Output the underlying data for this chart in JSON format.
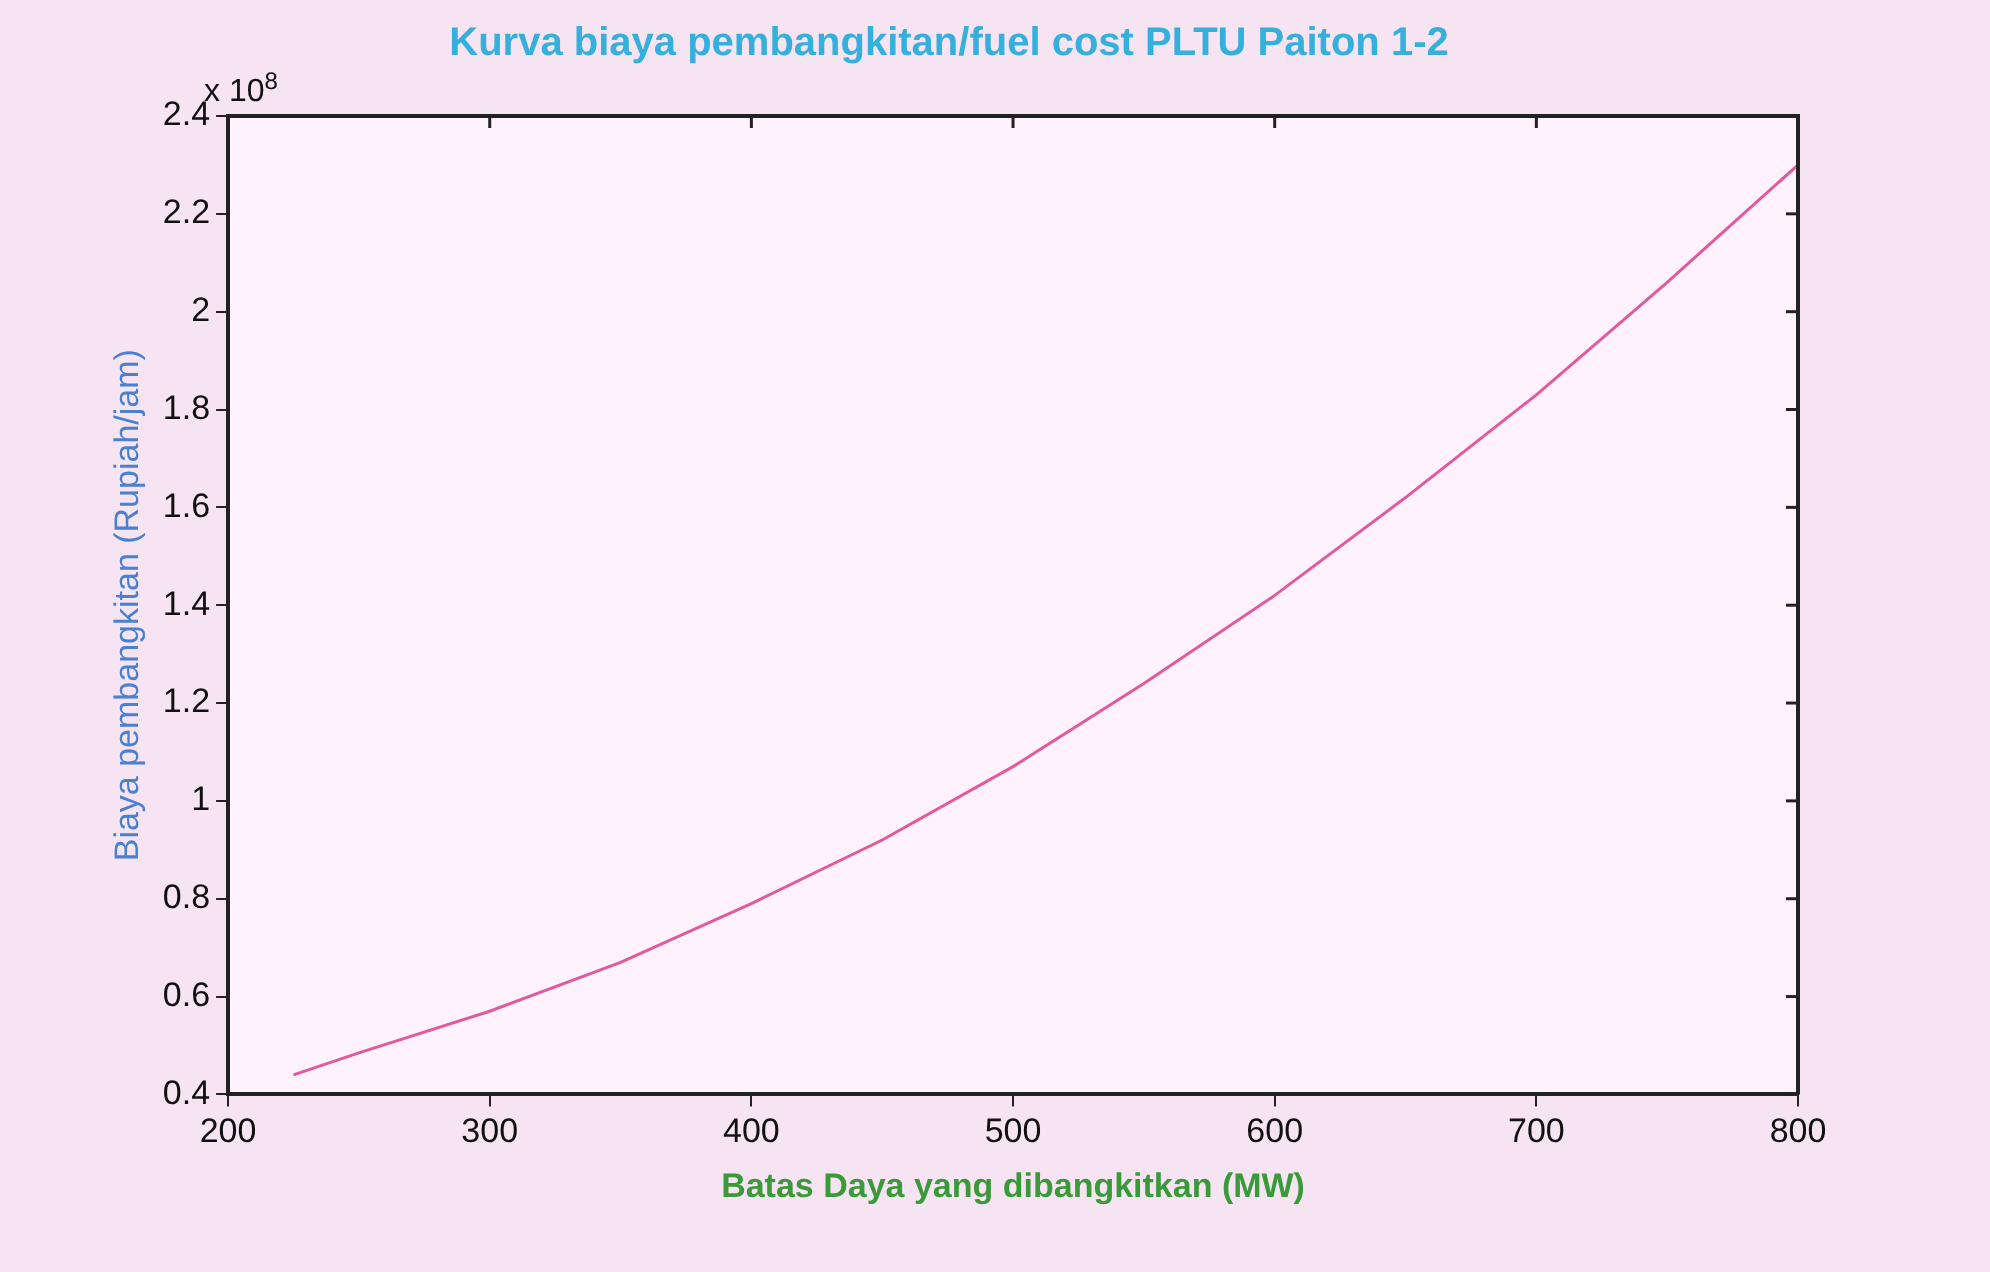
{
  "chart_data": {
    "type": "line",
    "title": "Kurva biaya pembangkitan/fuel cost PLTU Paiton 1-2",
    "xlabel": "Batas Daya yang dibangkitkan (MW)",
    "ylabel": "Biaya pembangkitan (Rupiah/jam)",
    "annotations": [
      "x 10$^{8}$"
    ],
    "x": [
      225,
      250,
      300,
      350,
      400,
      450,
      500,
      550,
      600,
      650,
      700,
      750,
      800
    ],
    "series": [
      {
        "color": "#e05aa0",
        "values": [
          0.44,
          0.485,
          0.57,
          0.67,
          0.79,
          0.92,
          1.07,
          1.24,
          1.42,
          1.62,
          1.83,
          2.06,
          2.3
        ]
      }
    ],
    "xlim": [
      200,
      800
    ],
    "xticks": [
      200,
      300,
      400,
      500,
      600,
      700,
      800
    ],
    "ylim": [
      0.4,
      2.4
    ],
    "yticks": [
      0.4,
      0.6,
      0.8,
      1,
      1.2,
      1.4,
      1.6,
      1.8,
      2,
      2.2,
      2.4
    ],
    "grid": false,
    "legend": false,
    "marker": "none",
    "line_style": "solid"
  }
}
